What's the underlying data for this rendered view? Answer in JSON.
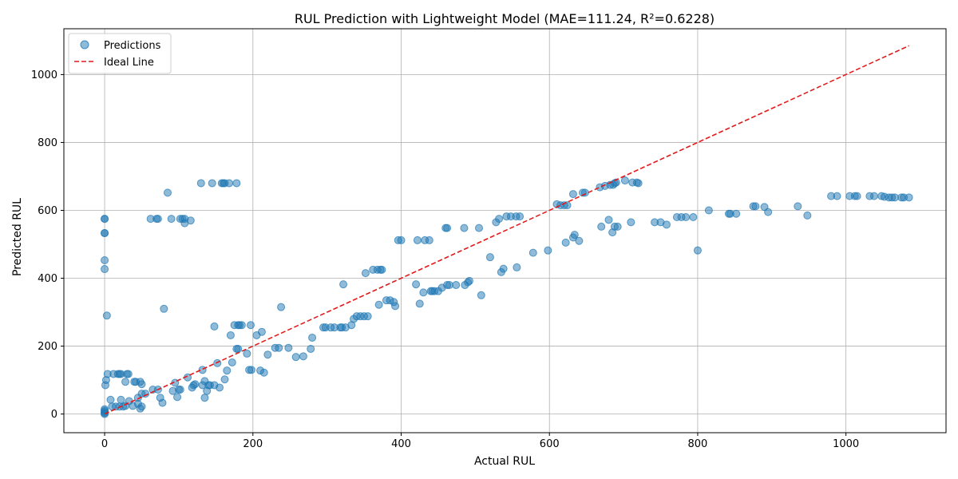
{
  "chart_data": {
    "type": "scatter",
    "title": "RUL Prediction with Lightweight Model (MAE=111.24, R²=0.6228)",
    "xlabel": "Actual RUL",
    "ylabel": "Predicted RUL",
    "xlim": [
      -55,
      1135
    ],
    "ylim": [
      -55,
      1135
    ],
    "xticks": [
      0,
      200,
      400,
      600,
      800,
      1000
    ],
    "yticks": [
      0,
      200,
      400,
      600,
      800,
      1000
    ],
    "grid": true,
    "legend_position": "top-left",
    "series": [
      {
        "name": "Predictions",
        "kind": "scatter",
        "color": "#1f77b4",
        "points": [
          [
            0,
            575
          ],
          [
            0,
            575
          ],
          [
            0,
            533
          ],
          [
            0,
            533
          ],
          [
            0,
            453
          ],
          [
            0,
            427
          ],
          [
            3,
            290
          ],
          [
            0,
            0
          ],
          [
            0,
            3
          ],
          [
            0,
            6
          ],
          [
            0,
            10
          ],
          [
            0,
            14
          ],
          [
            1,
            85
          ],
          [
            2,
            100
          ],
          [
            4,
            118
          ],
          [
            8,
            42
          ],
          [
            10,
            22
          ],
          [
            12,
            118
          ],
          [
            18,
            118
          ],
          [
            20,
            118
          ],
          [
            22,
            118
          ],
          [
            15,
            22
          ],
          [
            20,
            22
          ],
          [
            22,
            42
          ],
          [
            25,
            22
          ],
          [
            28,
            24
          ],
          [
            28,
            95
          ],
          [
            30,
            118
          ],
          [
            32,
            118
          ],
          [
            33,
            38
          ],
          [
            38,
            24
          ],
          [
            40,
            95
          ],
          [
            42,
            95
          ],
          [
            45,
            30
          ],
          [
            48,
            95
          ],
          [
            50,
            88
          ],
          [
            45,
            48
          ],
          [
            50,
            60
          ],
          [
            55,
            60
          ],
          [
            50,
            22
          ],
          [
            48,
            16
          ],
          [
            65,
            72
          ],
          [
            72,
            72
          ],
          [
            75,
            48
          ],
          [
            78,
            33
          ],
          [
            80,
            310
          ],
          [
            85,
            652
          ],
          [
            90,
            575
          ],
          [
            62,
            575
          ],
          [
            70,
            575
          ],
          [
            72,
            575
          ],
          [
            92,
            68
          ],
          [
            95,
            92
          ],
          [
            98,
            50
          ],
          [
            100,
            72
          ],
          [
            102,
            72
          ],
          [
            102,
            575
          ],
          [
            105,
            575
          ],
          [
            108,
            575
          ],
          [
            108,
            562
          ],
          [
            112,
            108
          ],
          [
            116,
            570
          ],
          [
            118,
            78
          ],
          [
            120,
            85
          ],
          [
            122,
            88
          ],
          [
            130,
            680
          ],
          [
            132,
            130
          ],
          [
            132,
            85
          ],
          [
            135,
            97
          ],
          [
            135,
            48
          ],
          [
            138,
            68
          ],
          [
            140,
            85
          ],
          [
            142,
            85
          ],
          [
            145,
            680
          ],
          [
            148,
            85
          ],
          [
            148,
            258
          ],
          [
            152,
            150
          ],
          [
            155,
            78
          ],
          [
            158,
            680
          ],
          [
            160,
            680
          ],
          [
            162,
            680
          ],
          [
            162,
            102
          ],
          [
            165,
            128
          ],
          [
            168,
            680
          ],
          [
            170,
            232
          ],
          [
            172,
            152
          ],
          [
            175,
            262
          ],
          [
            178,
            680
          ],
          [
            178,
            192
          ],
          [
            180,
            192
          ],
          [
            180,
            262
          ],
          [
            182,
            262
          ],
          [
            185,
            262
          ],
          [
            192,
            178
          ],
          [
            195,
            130
          ],
          [
            197,
            262
          ],
          [
            198,
            130
          ],
          [
            205,
            232
          ],
          [
            210,
            128
          ],
          [
            212,
            242
          ],
          [
            215,
            122
          ],
          [
            220,
            175
          ],
          [
            230,
            195
          ],
          [
            235,
            195
          ],
          [
            238,
            315
          ],
          [
            248,
            195
          ],
          [
            258,
            168
          ],
          [
            268,
            170
          ],
          [
            278,
            192
          ],
          [
            280,
            225
          ],
          [
            295,
            255
          ],
          [
            298,
            255
          ],
          [
            305,
            255
          ],
          [
            310,
            255
          ],
          [
            318,
            255
          ],
          [
            320,
            255
          ],
          [
            322,
            382
          ],
          [
            325,
            255
          ],
          [
            333,
            262
          ],
          [
            336,
            280
          ],
          [
            340,
            288
          ],
          [
            345,
            288
          ],
          [
            350,
            288
          ],
          [
            355,
            288
          ],
          [
            352,
            415
          ],
          [
            362,
            425
          ],
          [
            368,
            425
          ],
          [
            370,
            322
          ],
          [
            372,
            425
          ],
          [
            374,
            425
          ],
          [
            380,
            335
          ],
          [
            385,
            335
          ],
          [
            390,
            330
          ],
          [
            392,
            318
          ],
          [
            396,
            512
          ],
          [
            400,
            512
          ],
          [
            420,
            382
          ],
          [
            422,
            512
          ],
          [
            425,
            325
          ],
          [
            430,
            358
          ],
          [
            432,
            512
          ],
          [
            438,
            512
          ],
          [
            440,
            362
          ],
          [
            442,
            362
          ],
          [
            445,
            362
          ],
          [
            450,
            362
          ],
          [
            455,
            372
          ],
          [
            460,
            548
          ],
          [
            462,
            548
          ],
          [
            462,
            380
          ],
          [
            465,
            380
          ],
          [
            474,
            380
          ],
          [
            485,
            548
          ],
          [
            486,
            380
          ],
          [
            490,
            388
          ],
          [
            492,
            392
          ],
          [
            505,
            548
          ],
          [
            508,
            350
          ],
          [
            520,
            462
          ],
          [
            528,
            565
          ],
          [
            532,
            575
          ],
          [
            535,
            418
          ],
          [
            538,
            428
          ],
          [
            542,
            582
          ],
          [
            548,
            582
          ],
          [
            555,
            582
          ],
          [
            556,
            432
          ],
          [
            560,
            582
          ],
          [
            578,
            475
          ],
          [
            598,
            482
          ],
          [
            610,
            618
          ],
          [
            615,
            615
          ],
          [
            620,
            615
          ],
          [
            622,
            505
          ],
          [
            624,
            615
          ],
          [
            632,
            648
          ],
          [
            632,
            520
          ],
          [
            634,
            528
          ],
          [
            640,
            510
          ],
          [
            645,
            652
          ],
          [
            648,
            652
          ],
          [
            668,
            668
          ],
          [
            670,
            552
          ],
          [
            675,
            672
          ],
          [
            680,
            572
          ],
          [
            682,
            675
          ],
          [
            685,
            535
          ],
          [
            686,
            675
          ],
          [
            688,
            680
          ],
          [
            688,
            552
          ],
          [
            690,
            682
          ],
          [
            692,
            552
          ],
          [
            702,
            688
          ],
          [
            710,
            565
          ],
          [
            712,
            682
          ],
          [
            718,
            682
          ],
          [
            720,
            680
          ],
          [
            742,
            565
          ],
          [
            750,
            565
          ],
          [
            758,
            558
          ],
          [
            772,
            580
          ],
          [
            778,
            580
          ],
          [
            784,
            580
          ],
          [
            794,
            580
          ],
          [
            800,
            482
          ],
          [
            815,
            600
          ],
          [
            842,
            590
          ],
          [
            844,
            590
          ],
          [
            852,
            590
          ],
          [
            875,
            612
          ],
          [
            878,
            612
          ],
          [
            890,
            610
          ],
          [
            895,
            595
          ],
          [
            935,
            612
          ],
          [
            948,
            585
          ],
          [
            980,
            642
          ],
          [
            988,
            642
          ],
          [
            1005,
            642
          ],
          [
            1012,
            642
          ],
          [
            1015,
            642
          ],
          [
            1032,
            642
          ],
          [
            1038,
            642
          ],
          [
            1048,
            642
          ],
          [
            1052,
            640
          ],
          [
            1058,
            638
          ],
          [
            1062,
            638
          ],
          [
            1066,
            638
          ],
          [
            1075,
            638
          ],
          [
            1078,
            638
          ],
          [
            1085,
            638
          ]
        ]
      },
      {
        "name": "Ideal Line",
        "kind": "line",
        "color": "#e31a1c",
        "points": [
          [
            0,
            0
          ],
          [
            1085,
            1085
          ]
        ]
      }
    ]
  }
}
